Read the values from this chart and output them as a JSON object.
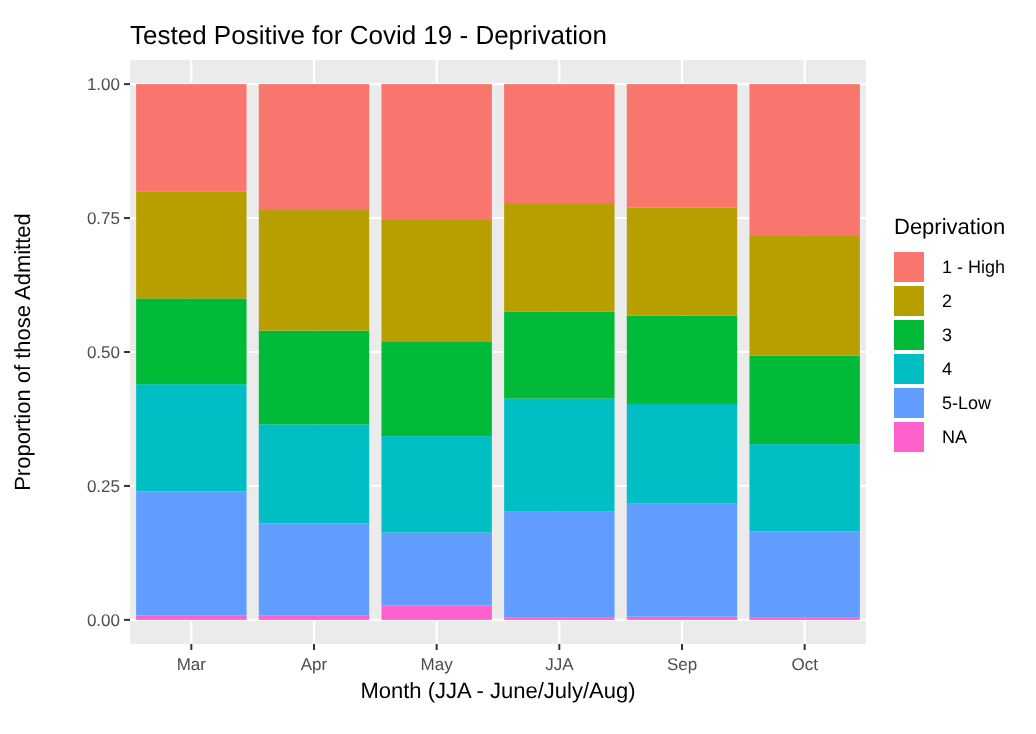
{
  "chart_data": {
    "type": "bar",
    "stacked": true,
    "title": "Tested Positive for Covid 19 - Deprivation",
    "xlabel": "Month (JJA - June/July/Aug)",
    "ylabel": "Proportion of those Admitted",
    "legend_title": "Deprivation",
    "legend": "right",
    "grid": true,
    "categories": [
      "Mar",
      "Apr",
      "May",
      "JJA",
      "Sep",
      "Oct"
    ],
    "ylim": [
      -0.045,
      1.045
    ],
    "yticks": [
      {
        "value": 0,
        "label": "0.00"
      },
      {
        "value": 0.25,
        "label": "0.25"
      },
      {
        "value": 0.5,
        "label": "0.50"
      },
      {
        "value": 0.75,
        "label": "0.75"
      },
      {
        "value": 1,
        "label": "1.00"
      }
    ],
    "series": [
      {
        "name": "NA",
        "color": "#ff61cc",
        "values": [
          0.008,
          0.008,
          0.027,
          0.005,
          0.006,
          0.004
        ]
      },
      {
        "name": "5-Low",
        "color": "#619cff",
        "values": [
          0.232,
          0.172,
          0.136,
          0.198,
          0.212,
          0.161
        ]
      },
      {
        "name": "4",
        "color": "#00bfc4",
        "values": [
          0.2,
          0.185,
          0.18,
          0.21,
          0.185,
          0.163
        ]
      },
      {
        "name": "3",
        "color": "#00ba38",
        "values": [
          0.16,
          0.175,
          0.177,
          0.162,
          0.165,
          0.165
        ]
      },
      {
        "name": "2",
        "color": "#b79f00",
        "values": [
          0.2,
          0.225,
          0.228,
          0.203,
          0.202,
          0.225
        ]
      },
      {
        "name": "1 - High",
        "color": "#f8766d",
        "values": [
          0.2,
          0.235,
          0.252,
          0.222,
          0.23,
          0.282
        ]
      }
    ]
  }
}
